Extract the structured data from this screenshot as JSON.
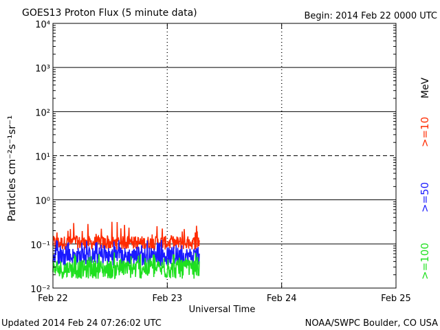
{
  "header": {
    "title": "GOES13 Proton Flux (5 minute data)",
    "begin": "Begin: 2014 Feb 22 0000 UTC"
  },
  "footer": {
    "updated": "Updated 2014 Feb 24 07:26:02 UTC",
    "credit": "NOAA/SWPC Boulder, CO USA"
  },
  "chart_data": {
    "type": "line",
    "title": "GOES13 Proton Flux (5 minute data)",
    "xlabel": "Universal Time",
    "ylabel": "Particles cm⁻²s⁻¹sr⁻¹",
    "y_scale": "log",
    "ylim": [
      0.01,
      10000
    ],
    "y_ticks": [
      "10⁻²",
      "10⁻¹",
      "10⁰",
      "10¹",
      "10²",
      "10³",
      "10⁴"
    ],
    "x_ticks": [
      "Feb 22",
      "Feb 23",
      "Feb 24",
      "Feb 25"
    ],
    "xlim_days": [
      0,
      3
    ],
    "data_end_day": 1.28,
    "threshold_line": {
      "y": 10,
      "style": "dashed"
    },
    "legend_unit": "MeV",
    "grid": "major horizontal lines at each decade",
    "series": [
      {
        "name": ">=10",
        "color": "#ff2a00",
        "baseline": 0.11,
        "min": 0.07,
        "max": 0.32
      },
      {
        "name": ">=50",
        "color": "#1a1aff",
        "baseline": 0.055,
        "min": 0.03,
        "max": 0.13
      },
      {
        "name": ">=100",
        "color": "#1fe01f",
        "baseline": 0.028,
        "min": 0.015,
        "max": 0.065
      }
    ]
  }
}
